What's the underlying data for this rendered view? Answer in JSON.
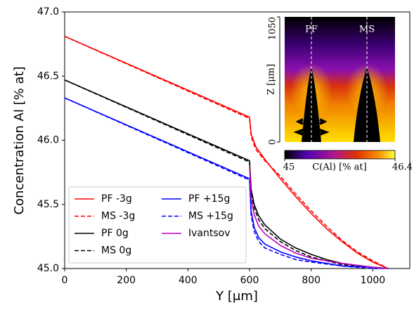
{
  "chart_data": {
    "type": "line",
    "xlabel": "Y [μm]",
    "ylabel": "Concentration Al [% at]",
    "xlim": [
      0,
      1120
    ],
    "ylim": [
      45,
      47
    ],
    "xticks": [
      0,
      200,
      400,
      600,
      800,
      1000
    ],
    "yticks": [
      {
        "value": 45,
        "label": "45.0"
      },
      {
        "value": 45.5,
        "label": "45.5"
      },
      {
        "value": 46,
        "label": "46.0"
      },
      {
        "value": 46.5,
        "label": "46.5"
      },
      {
        "value": 47,
        "label": "47.0"
      }
    ],
    "legend": "lower left",
    "series": [
      {
        "name": "PF -3g",
        "color": "#ff0000",
        "dashed": false,
        "x": [
          0,
          600,
          605,
          620,
          650,
          700,
          750,
          800,
          850,
          900,
          950,
          1000,
          1050
        ],
        "values": [
          46.81,
          46.18,
          46.05,
          45.95,
          45.85,
          45.7,
          45.56,
          45.43,
          45.31,
          45.21,
          45.12,
          45.05,
          45.0
        ]
      },
      {
        "name": "MS -3g",
        "color": "#ff0000",
        "dashed": true,
        "x": [
          0,
          600,
          605,
          620,
          650,
          700,
          750,
          800,
          850,
          900,
          950,
          1000,
          1050
        ],
        "values": [
          46.81,
          46.17,
          46.03,
          45.93,
          45.84,
          45.72,
          45.58,
          45.45,
          45.33,
          45.22,
          45.13,
          45.06,
          45.0
        ]
      },
      {
        "name": "PF 0g",
        "color": "#000000",
        "dashed": false,
        "x": [
          0,
          600,
          605,
          615,
          630,
          650,
          700,
          750,
          800,
          850,
          900,
          1000,
          1050
        ],
        "values": [
          46.47,
          45.84,
          45.62,
          45.5,
          45.41,
          45.34,
          45.23,
          45.16,
          45.11,
          45.07,
          45.04,
          45.01,
          45.0
        ]
      },
      {
        "name": "MS 0g",
        "color": "#000000",
        "dashed": true,
        "x": [
          0,
          600,
          605,
          615,
          630,
          650,
          700,
          750,
          800,
          850,
          900,
          1000,
          1050
        ],
        "values": [
          46.47,
          45.83,
          45.6,
          45.47,
          45.38,
          45.31,
          45.21,
          45.14,
          45.09,
          45.06,
          45.03,
          45.01,
          45.0
        ]
      },
      {
        "name": "PF +15g",
        "color": "#0000ff",
        "dashed": false,
        "x": [
          0,
          600,
          605,
          615,
          630,
          650,
          700,
          750,
          800,
          900,
          1000,
          1050
        ],
        "values": [
          46.33,
          45.7,
          45.45,
          45.32,
          45.24,
          45.19,
          45.13,
          45.09,
          45.06,
          45.02,
          45.01,
          45.0
        ]
      },
      {
        "name": "MS +15g",
        "color": "#0000ff",
        "dashed": true,
        "x": [
          0,
          600,
          605,
          615,
          630,
          650,
          700,
          750,
          800,
          900,
          1000,
          1050
        ],
        "values": [
          46.33,
          45.69,
          45.42,
          45.29,
          45.21,
          45.16,
          45.11,
          45.07,
          45.05,
          45.02,
          45.0,
          45.0
        ]
      },
      {
        "name": "Ivantsov",
        "color": "#bf00bf",
        "dashed": false,
        "x": [
          600,
          605,
          615,
          630,
          650,
          700,
          750,
          800,
          900,
          1000,
          1050
        ],
        "values": [
          45.8,
          45.55,
          45.42,
          45.33,
          45.27,
          45.18,
          45.12,
          45.08,
          45.04,
          45.01,
          45.0
        ]
      }
    ],
    "inset": {
      "labels": [
        "PF",
        "MS"
      ],
      "ylabel": "Z [μm]",
      "ylim": [
        0,
        1050
      ],
      "yticks": [
        0,
        1050
      ],
      "colorbar": {
        "label": "C(Al) [% at]",
        "clim": [
          45,
          46.4
        ],
        "ticks": [
          45,
          46.4
        ]
      }
    }
  }
}
